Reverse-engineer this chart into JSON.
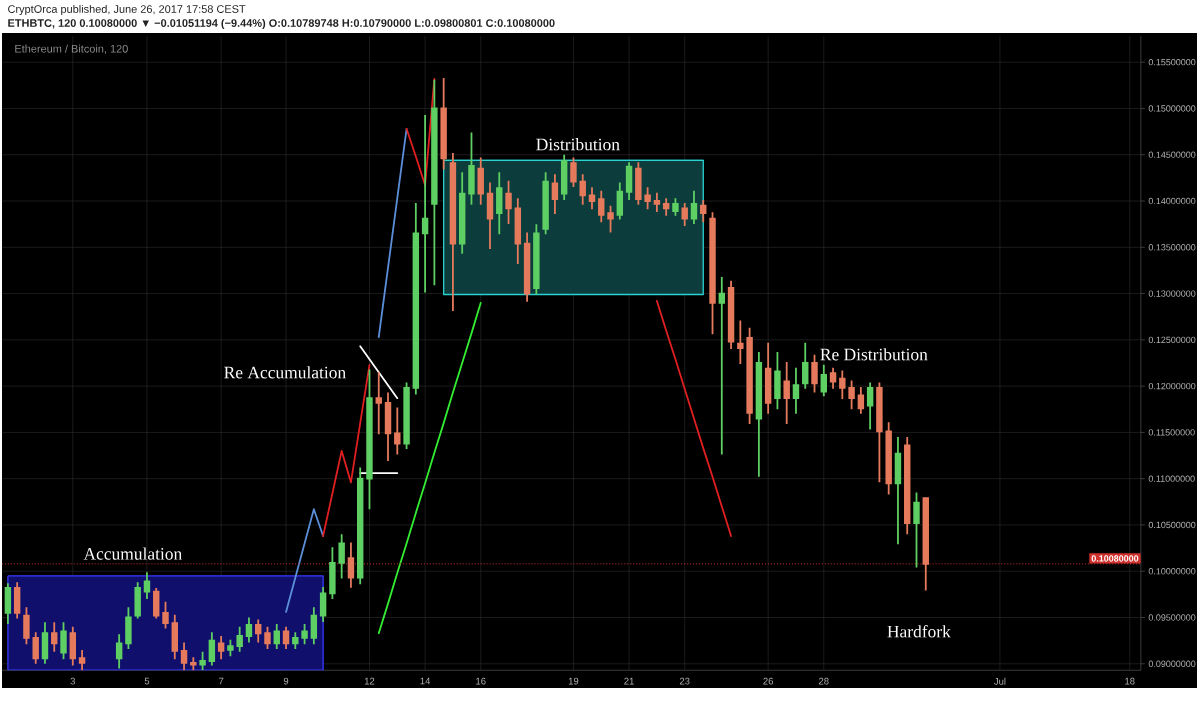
{
  "chart_data": {
    "type": "candlestick",
    "title": "Ethereum / Bitcoin, 120",
    "subtitle": "ETHBTC, 120  0.10080000 ▼ −0.01051194 (−9.44%) O:0.10789748 H:0.10790000 L:0.09800801 C:0.10080000",
    "annotations": [
      "CryptOrca published, June 26, 2017 17:58 CEST",
      "Accumulation",
      "Re Accumulation",
      "Distribution",
      "Re Distribution",
      "Hardfork"
    ],
    "categories": [
      null,
      null,
      null,
      null,
      null,
      null,
      null,
      "3",
      null,
      null,
      null,
      null,
      null,
      null,
      null,
      "5",
      null,
      null,
      null,
      null,
      null,
      null,
      null,
      "7",
      null,
      null,
      null,
      null,
      null,
      null,
      "9",
      null,
      null,
      null,
      null,
      null,
      null,
      null,
      null,
      "12",
      null,
      null,
      null,
      null,
      null,
      "14",
      null,
      null,
      null,
      null,
      null,
      "16",
      null,
      null,
      null,
      null,
      null,
      null,
      null,
      null,
      null,
      "19",
      null,
      null,
      null,
      null,
      null,
      "21",
      null,
      null,
      null,
      null,
      null,
      "23",
      null,
      null,
      null,
      null,
      null,
      null,
      null,
      null,
      "26",
      null,
      null,
      null,
      null,
      null,
      "28",
      null,
      null,
      null,
      null,
      null,
      null,
      null,
      null,
      null,
      null,
      null,
      null,
      null,
      null,
      null,
      null,
      null,
      null,
      "Jul",
      null,
      null,
      null,
      null,
      null,
      null,
      null,
      null,
      null,
      null,
      null,
      null,
      null,
      "18"
    ],
    "ohlc": [
      [
        0.0955,
        0.0986,
        0.0944,
        0.0982
      ],
      [
        0.0982,
        0.0987,
        0.095,
        0.0955
      ],
      [
        0.0952,
        0.096,
        0.0922,
        0.0928
      ],
      [
        0.0928,
        0.0933,
        0.0901,
        0.0906
      ],
      [
        0.0906,
        0.0944,
        0.0901,
        0.0933
      ],
      [
        0.0933,
        0.0944,
        0.0914,
        0.0922
      ],
      [
        0.0912,
        0.0944,
        0.0906,
        0.0935
      ],
      [
        0.0933,
        0.0939,
        0.0899,
        0.0906
      ],
      [
        0.0906,
        0.0914,
        0.0894,
        0.0901
      ],
      null,
      null,
      null,
      [
        0.0906,
        0.0931,
        0.0896,
        0.0922
      ],
      [
        0.0922,
        0.096,
        0.0917,
        0.095
      ],
      [
        0.0952,
        0.0987,
        0.095,
        0.0982
      ],
      [
        0.0978,
        0.0998,
        0.0971,
        0.0989
      ],
      [
        0.0978,
        0.0981,
        0.095,
        0.0952
      ],
      [
        0.0955,
        0.0966,
        0.0939,
        0.0944
      ],
      [
        0.0944,
        0.0952,
        0.0906,
        0.0914
      ],
      [
        0.0914,
        0.0922,
        0.0894,
        0.0901
      ],
      [
        0.0901,
        0.0906,
        0.0894,
        0.0899
      ],
      [
        0.0899,
        0.0912,
        0.0894,
        0.0903
      ],
      [
        0.0903,
        0.0933,
        0.0899,
        0.0925
      ],
      [
        0.0922,
        0.0929,
        0.0906,
        0.0914
      ],
      [
        0.0915,
        0.0925,
        0.0909,
        0.0919
      ],
      [
        0.0919,
        0.0939,
        0.0914,
        0.093
      ],
      [
        0.093,
        0.0949,
        0.0924,
        0.0942
      ],
      [
        0.0942,
        0.0947,
        0.0924,
        0.0933
      ],
      [
        0.0933,
        0.0939,
        0.0917,
        0.0922
      ],
      [
        0.0922,
        0.0942,
        0.0917,
        0.0935
      ],
      [
        0.0935,
        0.0939,
        0.0917,
        0.0922
      ],
      [
        0.0922,
        0.0933,
        0.0917,
        0.0928
      ],
      [
        0.0928,
        0.0942,
        0.0922,
        0.0935
      ],
      [
        0.0928,
        0.096,
        0.0922,
        0.0952
      ],
      [
        0.0952,
        0.0982,
        0.0946,
        0.0976
      ],
      [
        0.0976,
        0.1025,
        0.0971,
        0.1009
      ],
      [
        0.1009,
        0.1039,
        0.0993,
        0.103
      ],
      [
        0.1014,
        0.103,
        0.0983,
        0.0993
      ],
      [
        0.0993,
        0.1111,
        0.0987,
        0.11
      ],
      [
        0.11,
        0.1217,
        0.1068,
        0.1187
      ],
      [
        0.1187,
        0.1214,
        0.1149,
        0.1182
      ],
      [
        0.1182,
        0.1192,
        0.112,
        0.1149
      ],
      [
        0.1149,
        0.1176,
        0.1127,
        0.1138
      ],
      [
        0.1138,
        0.1203,
        0.1133,
        0.1198
      ],
      [
        0.1198,
        0.1397,
        0.1192,
        0.1365
      ],
      [
        0.1365,
        0.1492,
        0.1302,
        0.1381
      ],
      [
        0.1397,
        0.153,
        0.131,
        0.15
      ],
      [
        0.15,
        0.1532,
        0.1435,
        0.1446
      ],
      [
        0.1441,
        0.1451,
        0.1282,
        0.1354
      ],
      [
        0.1354,
        0.143,
        0.1344,
        0.1408
      ],
      [
        0.1408,
        0.1473,
        0.1397,
        0.1438
      ],
      [
        0.1435,
        0.1446,
        0.1397,
        0.1408
      ],
      [
        0.1408,
        0.1419,
        0.1349,
        0.1381
      ],
      [
        0.1387,
        0.143,
        0.1365,
        0.1414
      ],
      [
        0.1408,
        0.1421,
        0.1376,
        0.1392
      ],
      [
        0.1392,
        0.1402,
        0.1333,
        0.1354
      ],
      [
        0.1354,
        0.1365,
        0.1292,
        0.13
      ],
      [
        0.1306,
        0.1374,
        0.13,
        0.1365
      ],
      [
        0.137,
        0.143,
        0.1365,
        0.1421
      ],
      [
        0.1419,
        0.1428,
        0.1387,
        0.1402
      ],
      [
        0.1408,
        0.1449,
        0.1402,
        0.1443
      ],
      [
        0.1441,
        0.1446,
        0.1416,
        0.1421
      ],
      [
        0.1421,
        0.1428,
        0.1397,
        0.1406
      ],
      [
        0.1406,
        0.1414,
        0.1392,
        0.14
      ],
      [
        0.1402,
        0.141,
        0.1378,
        0.1385
      ],
      [
        0.1387,
        0.1394,
        0.1367,
        0.1381
      ],
      [
        0.1385,
        0.1419,
        0.1381,
        0.141
      ],
      [
        0.141,
        0.1441,
        0.1402,
        0.1437
      ],
      [
        0.1435,
        0.1441,
        0.1397,
        0.1402
      ],
      [
        0.1406,
        0.1414,
        0.1392,
        0.14
      ],
      [
        0.14,
        0.1408,
        0.1389,
        0.1397
      ],
      [
        0.1397,
        0.1402,
        0.1385,
        0.1392
      ],
      [
        0.1389,
        0.1402,
        0.1385,
        0.1397
      ],
      [
        0.1392,
        0.1397,
        0.1374,
        0.1381
      ],
      [
        0.1381,
        0.141,
        0.1376,
        0.1397
      ],
      [
        0.1395,
        0.14,
        0.1378,
        0.1387
      ],
      [
        0.1381,
        0.1387,
        0.1257,
        0.129
      ],
      [
        0.129,
        0.1317,
        0.1127,
        0.13
      ],
      [
        0.1306,
        0.1313,
        0.1241,
        0.1248
      ],
      [
        0.1246,
        0.127,
        0.1225,
        0.1241
      ],
      [
        0.1252,
        0.1262,
        0.116,
        0.1171
      ],
      [
        0.1165,
        0.1236,
        0.1103,
        0.1225
      ],
      [
        0.1219,
        0.1246,
        0.1171,
        0.1182
      ],
      [
        0.1187,
        0.1236,
        0.1176,
        0.1216
      ],
      [
        0.1205,
        0.1225,
        0.116,
        0.1187
      ],
      [
        0.1187,
        0.1219,
        0.1171,
        0.1201
      ],
      [
        0.1203,
        0.1246,
        0.1198,
        0.1225
      ],
      [
        0.1225,
        0.1233,
        0.1194,
        0.1203
      ],
      [
        0.1194,
        0.1222,
        0.119,
        0.1212
      ],
      [
        0.1214,
        0.1219,
        0.1198,
        0.1205
      ],
      [
        0.1208,
        0.1216,
        0.1187,
        0.1198
      ],
      [
        0.1198,
        0.1205,
        0.1176,
        0.1187
      ],
      [
        0.119,
        0.1198,
        0.1171,
        0.1176
      ],
      [
        0.1179,
        0.1203,
        0.1154,
        0.1198
      ],
      [
        0.1198,
        0.1203,
        0.1097,
        0.1151
      ],
      [
        0.1151,
        0.116,
        0.1084,
        0.1095
      ],
      [
        0.1095,
        0.1144,
        0.103,
        0.1127
      ],
      [
        0.1136,
        0.1144,
        0.1041,
        0.1052
      ],
      [
        0.1052,
        0.1084,
        0.1005,
        0.1074
      ],
      [
        0.10789748,
        0.1079,
        0.09800801,
        0.1008
      ],
      null,
      null,
      null,
      null,
      null,
      null,
      null,
      null,
      null,
      null,
      null,
      null,
      null,
      null,
      null,
      null,
      null,
      null,
      null,
      null,
      null,
      null
    ],
    "colors": [
      "#5ecf63",
      "#e57a5c",
      "#e57a5c",
      "#e57a5c",
      "#5ecf63",
      "#e57a5c",
      "#5ecf63",
      "#e57a5c",
      "#e57a5c",
      null,
      null,
      null,
      "#5ecf63",
      "#5ecf63",
      "#5ecf63",
      "#5ecf63",
      "#e57a5c",
      "#e57a5c",
      "#e57a5c",
      "#e57a5c",
      "#e57a5c",
      "#5ecf63",
      "#5ecf63",
      "#e57a5c",
      "#5ecf63",
      "#5ecf63",
      "#5ecf63",
      "#e57a5c",
      "#e57a5c",
      "#5ecf63",
      "#e57a5c",
      "#5ecf63",
      "#5ecf63",
      "#5ecf63",
      "#5ecf63",
      "#5ecf63",
      "#5ecf63",
      "#e57a5c",
      "#5ecf63",
      "#5ecf63",
      "#e57a5c",
      "#e57a5c",
      "#e57a5c",
      "#5ecf63",
      "#5ecf63",
      "#5ecf63",
      "#5ecf63",
      "#e57a5c",
      "#e57a5c",
      "#5ecf63",
      "#5ecf63",
      "#e57a5c",
      "#e57a5c",
      "#5ecf63",
      "#e57a5c",
      "#e57a5c",
      "#e57a5c",
      "#5ecf63",
      "#5ecf63",
      "#e57a5c",
      "#5ecf63",
      "#e57a5c",
      "#e57a5c",
      "#e57a5c",
      "#e57a5c",
      "#e57a5c",
      "#5ecf63",
      "#5ecf63",
      "#e57a5c",
      "#e57a5c",
      "#e57a5c",
      "#e57a5c",
      "#5ecf63",
      "#e57a5c",
      "#5ecf63",
      "#e57a5c",
      "#e57a5c",
      "#5ecf63",
      "#e57a5c",
      "#e57a5c",
      "#e57a5c",
      "#5ecf63",
      "#e57a5c",
      "#5ecf63",
      "#e57a5c",
      "#5ecf63",
      "#5ecf63",
      "#e57a5c",
      "#5ecf63",
      "#e57a5c",
      "#e57a5c",
      "#e57a5c",
      "#e57a5c",
      "#5ecf63",
      "#e57a5c",
      "#e57a5c",
      "#5ecf63",
      "#e57a5c",
      "#5ecf63",
      "#e57a5c",
      null,
      null,
      null,
      null,
      null,
      null,
      null,
      null,
      null,
      null,
      null,
      null,
      null,
      null,
      null,
      null,
      null,
      null,
      null,
      null,
      null,
      null
    ],
    "series": [
      {
        "type": "area",
        "color": "#10106c",
        "values": [
          0.0995,
          0.0995,
          0.0995,
          0.0995,
          0.0995,
          0.0995,
          0.0995,
          0.0995,
          0.0995,
          0.0995,
          0.0995,
          0.0995,
          0.0995,
          0.0995,
          0.0995,
          0.0995,
          0.0995,
          0.0995,
          0.0995,
          0.0995,
          0.0995,
          0.0995,
          0.0995,
          0.0995,
          0.0995,
          0.0995,
          0.0995,
          0.0995,
          0.0995,
          0.0995,
          0.0995,
          0.0995,
          0.0995,
          0.0995,
          0.0995,
          null,
          null,
          null,
          null,
          null,
          null,
          null,
          null,
          null,
          null,
          null,
          null,
          null,
          null,
          null,
          null,
          null,
          null,
          null,
          null,
          null,
          null,
          null,
          null,
          null,
          null,
          null,
          null,
          null,
          null,
          null,
          null,
          null,
          null,
          null,
          null,
          null,
          null,
          null,
          null,
          null,
          null,
          null,
          null,
          null,
          null,
          null,
          null,
          null,
          null,
          null,
          null,
          null,
          null,
          null,
          null,
          null,
          null,
          null,
          null,
          null,
          null,
          null,
          null,
          null,
          null,
          null,
          null,
          null,
          null,
          null,
          null,
          null,
          null,
          null,
          null,
          null,
          null,
          null,
          null,
          null,
          null,
          null,
          null,
          null,
          null,
          null
        ]
      },
      {
        "type": "line",
        "color": "#2ad2d2",
        "values": [
          null,
          null,
          null,
          null,
          null,
          null,
          null,
          null,
          null,
          null,
          null,
          null,
          null,
          null,
          null,
          null,
          null,
          null,
          null,
          null,
          null,
          null,
          null,
          null,
          null,
          null,
          null,
          null,
          null,
          null,
          null,
          null,
          null,
          null,
          null,
          null,
          null,
          null,
          null,
          null,
          null,
          null,
          null,
          null,
          null,
          null,
          null,
          0.1444,
          0.1444,
          0.1444,
          0.1444,
          0.1444,
          0.1444,
          0.1444,
          0.1444,
          0.1444,
          0.1444,
          0.1444,
          0.1444,
          0.1444,
          0.1444,
          0.1444,
          0.1444,
          0.1444,
          0.1444,
          0.1444,
          0.1444,
          0.1444,
          0.1444,
          0.1444,
          0.1444,
          0.1444,
          0.1444,
          0.1444,
          0.1444,
          0.1444,
          null,
          null,
          null,
          null,
          null,
          null,
          null,
          null,
          null,
          null,
          null,
          null,
          null,
          null,
          null,
          null,
          null,
          null,
          null,
          null,
          null,
          null,
          null,
          null,
          null,
          null,
          null,
          null,
          null,
          null,
          null,
          null,
          null,
          null,
          null,
          null,
          null,
          null,
          null,
          null,
          null,
          null,
          null,
          null,
          null,
          null
        ],
        "upper": [
          null,
          null,
          null,
          null,
          null,
          null,
          null,
          null,
          null,
          null,
          null,
          null,
          null,
          null,
          null,
          null,
          null,
          null,
          null,
          null,
          null,
          null,
          null,
          null,
          null,
          null,
          null,
          null,
          null,
          null,
          null,
          null,
          null,
          null,
          null,
          null,
          null,
          null,
          null,
          null,
          null,
          null,
          null,
          null,
          null,
          null,
          null,
          0.1444,
          0.1444,
          0.1444,
          0.1444,
          0.1444,
          0.1444,
          0.1444,
          0.1444,
          0.1444,
          0.1444,
          0.1444,
          0.1444,
          0.1444,
          0.1444,
          0.1444,
          0.1444,
          0.1444,
          0.1444,
          0.1444,
          0.1444,
          0.1444,
          0.1444,
          0.1444,
          0.1444,
          0.1444,
          0.1444,
          0.1444,
          0.1444,
          0.1444,
          null,
          null,
          null,
          null,
          null,
          null,
          null,
          null,
          null,
          null,
          null,
          null,
          null,
          null,
          null,
          null,
          null,
          null,
          null,
          null,
          null,
          null,
          null,
          null,
          null,
          null,
          null,
          null,
          null,
          null,
          null,
          null,
          null,
          null,
          null,
          null,
          null,
          null,
          null,
          null,
          null,
          null,
          null,
          null,
          null,
          null
        ],
        "lower": [
          null,
          null,
          null,
          null,
          null,
          null,
          null,
          null,
          null,
          null,
          null,
          null,
          null,
          null,
          null,
          null,
          null,
          null,
          null,
          null,
          null,
          null,
          null,
          null,
          null,
          null,
          null,
          null,
          null,
          null,
          null,
          null,
          null,
          null,
          null,
          null,
          null,
          null,
          null,
          null,
          null,
          null,
          null,
          null,
          null,
          null,
          null,
          0.1299,
          0.1299,
          0.1299,
          0.1299,
          0.1299,
          0.1299,
          0.1299,
          0.1299,
          0.1299,
          0.1299,
          0.1299,
          0.1299,
          0.1299,
          0.1299,
          0.1299,
          0.1299,
          0.1299,
          0.1299,
          0.1299,
          0.1299,
          0.1299,
          0.1299,
          0.1299,
          0.1299,
          0.1299,
          0.1299,
          0.1299,
          0.1299,
          0.1299,
          null,
          null,
          null,
          null,
          null,
          null,
          null,
          null,
          null,
          null,
          null,
          null,
          null,
          null,
          null,
          null,
          null,
          null,
          null,
          null,
          null,
          null,
          null,
          null,
          null,
          null,
          null,
          null,
          null,
          null,
          null,
          null,
          null,
          null,
          null,
          null,
          null,
          null,
          null,
          null,
          null,
          null,
          null,
          null,
          null,
          null
        ]
      },
      {
        "type": "line",
        "color": "#5b8fd9",
        "values": [
          null,
          null,
          null,
          null,
          null,
          null,
          null,
          null,
          null,
          null,
          null,
          null,
          null,
          null,
          null,
          null,
          null,
          null,
          null,
          null,
          null,
          null,
          null,
          null,
          null,
          null,
          null,
          null,
          null,
          null,
          0.0956,
          0.0993,
          0.103,
          0.1067,
          0.1038,
          null,
          null,
          null,
          null,
          null,
          0.1253,
          0.1328,
          0.1403,
          0.1478,
          null,
          null,
          null,
          null,
          null,
          null,
          null,
          null,
          null,
          null,
          null,
          null,
          null,
          null,
          null,
          null,
          null,
          null,
          null,
          null,
          null,
          null,
          null,
          null,
          null,
          null,
          null,
          null,
          null,
          null,
          null,
          null,
          null,
          null,
          null,
          null,
          null,
          null,
          null,
          null,
          null,
          null,
          null,
          null,
          null,
          null,
          null,
          null,
          null,
          null,
          null,
          null,
          null,
          null,
          null,
          null,
          null,
          null,
          null,
          null,
          null,
          null,
          null,
          null,
          null,
          null,
          null,
          null,
          null,
          null,
          null,
          null,
          null,
          null,
          null,
          null,
          null,
          null
        ]
      },
      {
        "type": "line",
        "color": "#e02020",
        "values": [
          null,
          null,
          null,
          null,
          null,
          null,
          null,
          null,
          null,
          null,
          null,
          null,
          null,
          null,
          null,
          null,
          null,
          null,
          null,
          null,
          null,
          null,
          null,
          null,
          null,
          null,
          null,
          null,
          null,
          null,
          null,
          null,
          null,
          null,
          0.1038,
          0.1084,
          0.113,
          0.1096,
          0.116,
          0.1223,
          null,
          null,
          null,
          0.1478,
          0.1448,
          0.1417,
          0.1532,
          null,
          null,
          null,
          null,
          null,
          null,
          null,
          null,
          null,
          null,
          null,
          null,
          null,
          null,
          null,
          null,
          null,
          null,
          null,
          null,
          null,
          null,
          null,
          0.1292,
          0.126,
          0.1229,
          0.1197,
          0.1165,
          0.1133,
          0.1102,
          0.107,
          0.1038,
          null,
          null,
          null,
          null,
          null,
          null,
          null,
          null,
          null,
          null,
          null,
          null,
          null,
          null,
          null,
          null,
          null,
          null,
          null,
          null,
          null,
          null,
          null,
          null,
          null,
          null,
          null,
          null,
          null,
          null,
          null,
          null,
          null,
          null,
          null,
          null,
          null,
          null,
          null,
          null,
          null,
          null,
          null
        ]
      },
      {
        "type": "line",
        "color": "#ffffff",
        "values": [
          null,
          null,
          null,
          null,
          null,
          null,
          null,
          null,
          null,
          null,
          null,
          null,
          null,
          null,
          null,
          null,
          null,
          null,
          null,
          null,
          null,
          null,
          null,
          null,
          null,
          null,
          null,
          null,
          null,
          null,
          null,
          null,
          null,
          null,
          null,
          null,
          null,
          null,
          0.1243,
          0.1229,
          0.1215,
          0.1201,
          0.1187,
          null,
          null,
          null,
          null,
          null,
          null,
          null,
          null,
          null,
          null,
          null,
          null,
          null,
          null,
          null,
          null,
          null,
          null,
          null,
          null,
          null,
          null,
          null,
          null,
          null,
          null,
          null,
          null,
          null,
          null,
          null,
          null,
          null,
          null,
          null,
          null,
          null,
          null,
          null,
          null,
          null,
          null,
          null,
          null,
          null,
          null,
          null,
          null,
          null,
          null,
          null,
          null,
          null,
          null,
          null,
          null,
          null,
          null,
          null,
          null,
          null,
          null,
          null,
          null,
          null,
          null,
          null,
          null,
          null,
          null,
          null,
          null,
          null,
          null,
          null,
          null,
          null,
          null,
          null
        ]
      },
      {
        "type": "line",
        "color": "#ffffff",
        "values": [
          null,
          null,
          null,
          null,
          null,
          null,
          null,
          null,
          null,
          null,
          null,
          null,
          null,
          null,
          null,
          null,
          null,
          null,
          null,
          null,
          null,
          null,
          null,
          null,
          null,
          null,
          null,
          null,
          null,
          null,
          null,
          null,
          null,
          null,
          null,
          null,
          null,
          null,
          0.1106,
          0.1106,
          0.1106,
          0.1106,
          0.1106,
          null,
          null,
          null,
          null,
          null,
          null,
          null,
          null,
          null,
          null,
          null,
          null,
          null,
          null,
          null,
          null,
          null,
          null,
          null,
          null,
          null,
          null,
          null,
          null,
          null,
          null,
          null,
          null,
          null,
          null,
          null,
          null,
          null,
          null,
          null,
          null,
          null,
          null,
          null,
          null,
          null,
          null,
          null,
          null,
          null,
          null,
          null,
          null,
          null,
          null,
          null,
          null,
          null,
          null,
          null,
          null,
          null,
          null,
          null,
          null,
          null,
          null,
          null,
          null,
          null,
          null,
          null,
          null,
          null,
          null,
          null,
          null,
          null,
          null,
          null,
          null,
          null,
          null,
          null
        ]
      },
      {
        "type": "line",
        "color": "#33ee33",
        "values": [
          null,
          null,
          null,
          null,
          null,
          null,
          null,
          null,
          null,
          null,
          null,
          null,
          null,
          null,
          null,
          null,
          null,
          null,
          null,
          null,
          null,
          null,
          null,
          null,
          null,
          null,
          null,
          null,
          null,
          null,
          null,
          null,
          null,
          null,
          null,
          null,
          null,
          null,
          null,
          null,
          0.0933,
          0.0965,
          0.0998,
          0.103,
          0.1063,
          0.1095,
          0.1128,
          0.116,
          0.1193,
          0.1225,
          0.1257,
          0.129,
          null,
          null,
          null,
          null,
          null,
          null,
          null,
          null,
          null,
          null,
          null,
          null,
          null,
          null,
          null,
          null,
          null,
          null,
          null,
          null,
          null,
          null,
          null,
          null,
          null,
          null,
          null,
          null,
          null,
          null,
          null,
          null,
          null,
          null,
          null,
          null,
          null,
          null,
          null,
          null,
          null,
          null,
          null,
          null,
          null,
          null,
          null,
          null,
          null,
          null,
          null,
          null,
          null,
          null,
          null,
          null,
          null,
          null,
          null,
          null,
          null,
          null,
          null,
          null,
          null,
          null,
          null,
          null,
          null,
          null
        ]
      }
    ],
    "ref_lines": [
      {
        "axis": "y",
        "value": 0.1008,
        "label": "0.10080000",
        "color": "#d0312d",
        "line_style": "dotted"
      }
    ],
    "ylim": [
      0.0893,
      0.1578
    ],
    "yticks": [
      {
        "value": 0.09,
        "label": "0.09000000"
      },
      {
        "value": 0.095,
        "label": "0.09500000"
      },
      {
        "value": 0.1,
        "label": "0.10000000"
      },
      {
        "value": 0.105,
        "label": "0.10500000"
      },
      {
        "value": 0.11,
        "label": "0.11000000"
      },
      {
        "value": 0.115,
        "label": "0.11500000"
      },
      {
        "value": 0.12,
        "label": "0.12000000"
      },
      {
        "value": 0.125,
        "label": "0.12500000"
      },
      {
        "value": 0.13,
        "label": "0.13000000"
      },
      {
        "value": 0.135,
        "label": "0.13500000"
      },
      {
        "value": 0.14,
        "label": "0.14000000"
      },
      {
        "value": 0.145,
        "label": "0.14500000"
      },
      {
        "value": 0.15,
        "label": "0.15000000"
      },
      {
        "value": 0.155,
        "label": "0.15500000"
      }
    ],
    "grid": true
  }
}
